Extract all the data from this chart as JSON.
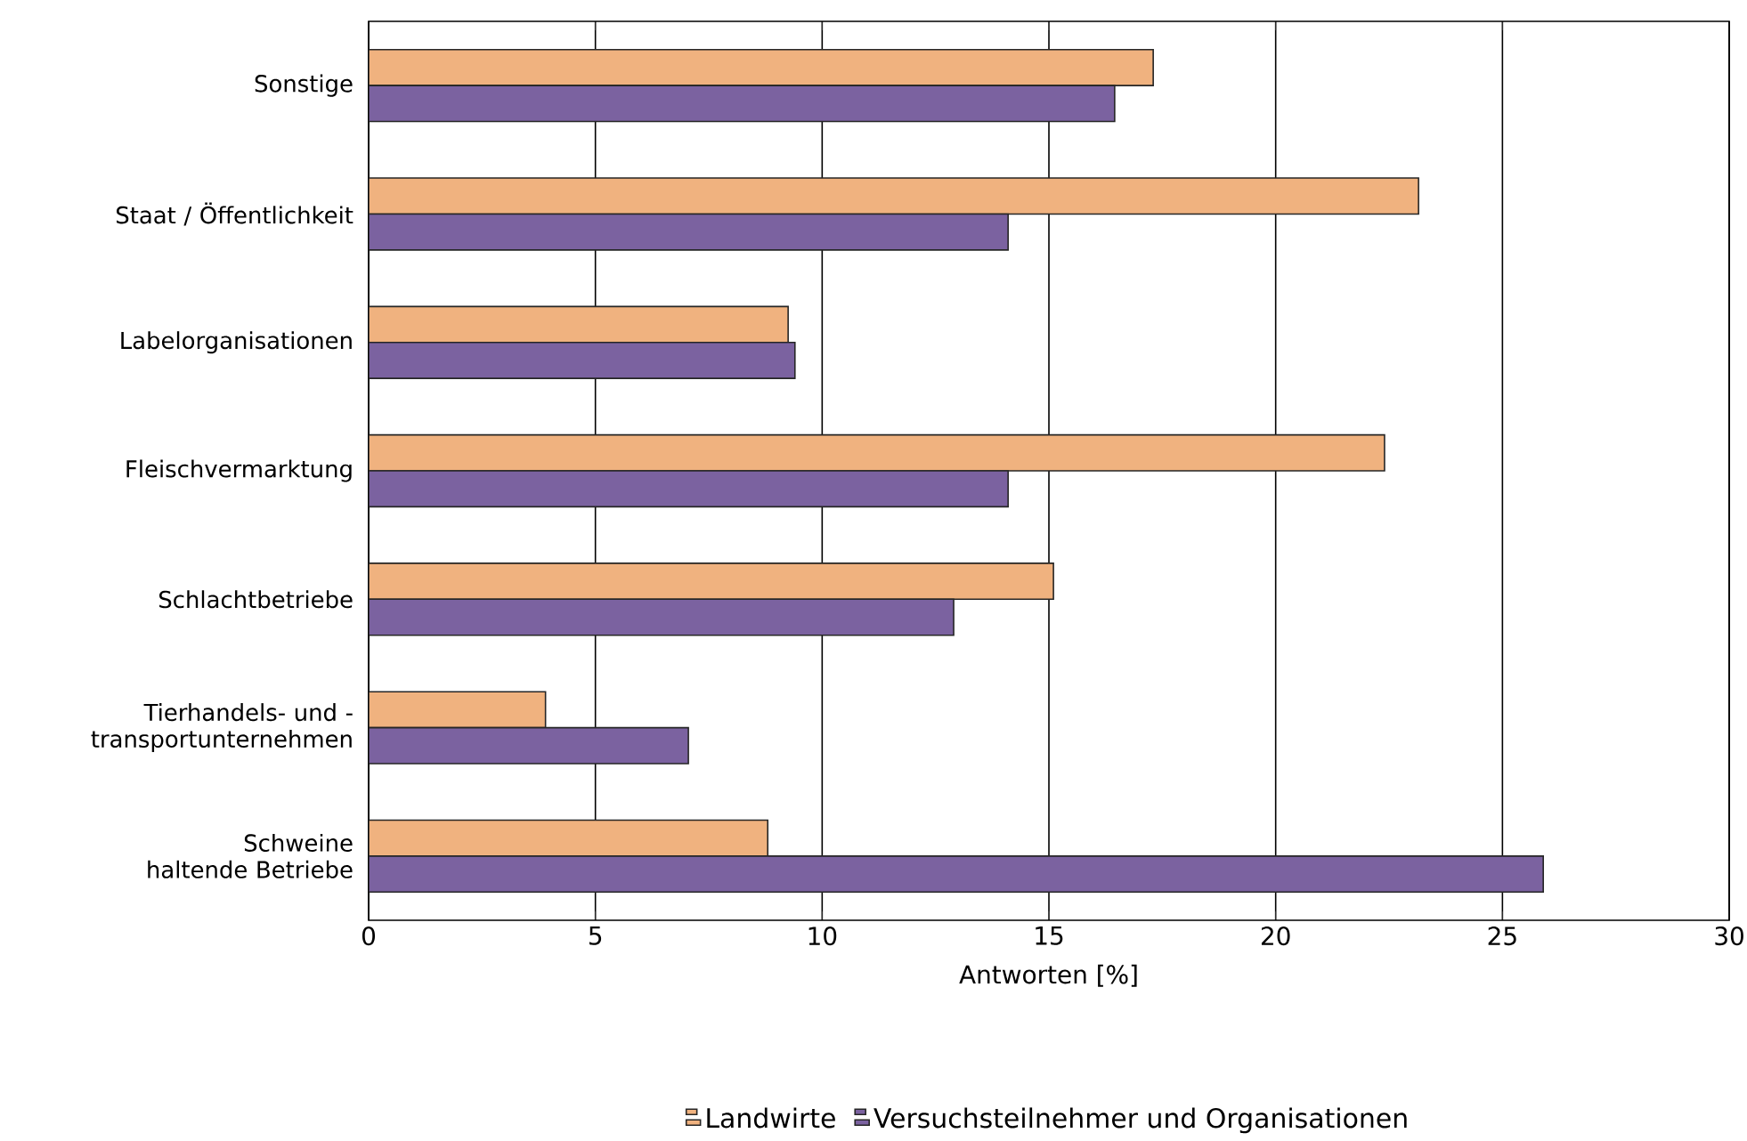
{
  "chart_data": {
    "type": "bar",
    "orientation": "horizontal",
    "xlabel": "Antworten [%]",
    "categories": [
      "Sonstige",
      "Staat / Öffentlichkeit",
      "Labelorganisationen",
      "Fleischvermarktung",
      "Schlachtbetriebe",
      "Tierhandels- und -transportunternehmen",
      "Schweine haltende Betriebe"
    ],
    "series": [
      {
        "name": "Landwirte",
        "color": "#f0b27f",
        "values": [
          17.3,
          23.15,
          9.25,
          22.4,
          15.1,
          3.9,
          8.8
        ]
      },
      {
        "name": "Versuchsteilnehmer und Organisationen",
        "color": "#7b62a0",
        "values": [
          16.45,
          14.1,
          9.4,
          14.1,
          12.9,
          7.05,
          25.9
        ]
      }
    ],
    "xlim": [
      0,
      30
    ],
    "xticks": [
      0,
      5,
      10,
      15,
      20,
      25,
      30
    ],
    "grid": "x",
    "legend": "bottom"
  }
}
